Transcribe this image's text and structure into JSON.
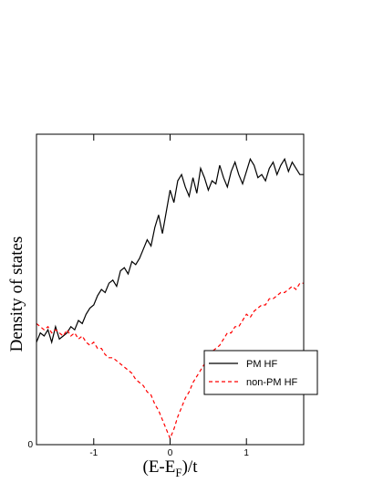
{
  "chart_data": {
    "type": "line",
    "xlabel": "(E-E",
    "xlabel_sub": "F",
    "xlabel_tail": ")/t",
    "ylabel": "Density of states",
    "xlim": [
      -1.75,
      1.75
    ],
    "ylim": [
      0,
      1.0
    ],
    "x_ticks": [
      -1,
      0,
      1
    ],
    "x_tick_labels": [
      "-1",
      "0",
      "1"
    ],
    "y_ticks": [
      0
    ],
    "y_tick_labels": [
      "0"
    ],
    "grid": false,
    "legend_position": "lower-right",
    "series": [
      {
        "name": "PM HF",
        "color": "#000000",
        "dash": "solid",
        "x": [
          -1.75,
          -1.7,
          -1.65,
          -1.6,
          -1.55,
          -1.5,
          -1.45,
          -1.4,
          -1.35,
          -1.3,
          -1.25,
          -1.2,
          -1.15,
          -1.1,
          -1.05,
          -1.0,
          -0.95,
          -0.9,
          -0.85,
          -0.8,
          -0.75,
          -0.7,
          -0.65,
          -0.6,
          -0.55,
          -0.5,
          -0.45,
          -0.4,
          -0.35,
          -0.3,
          -0.25,
          -0.2,
          -0.15,
          -0.1,
          -0.05,
          0.0,
          0.05,
          0.1,
          0.15,
          0.2,
          0.25,
          0.3,
          0.35,
          0.4,
          0.45,
          0.5,
          0.55,
          0.6,
          0.65,
          0.7,
          0.75,
          0.8,
          0.85,
          0.9,
          0.95,
          1.0,
          1.05,
          1.1,
          1.15,
          1.2,
          1.25,
          1.3,
          1.35,
          1.4,
          1.45,
          1.5,
          1.55,
          1.6,
          1.65,
          1.7,
          1.75
        ],
        "y": [
          0.33,
          0.36,
          0.35,
          0.37,
          0.33,
          0.38,
          0.34,
          0.35,
          0.36,
          0.38,
          0.37,
          0.4,
          0.39,
          0.42,
          0.44,
          0.45,
          0.48,
          0.5,
          0.49,
          0.52,
          0.53,
          0.51,
          0.56,
          0.57,
          0.55,
          0.59,
          0.58,
          0.6,
          0.63,
          0.66,
          0.64,
          0.7,
          0.74,
          0.68,
          0.75,
          0.82,
          0.78,
          0.85,
          0.87,
          0.83,
          0.8,
          0.86,
          0.81,
          0.89,
          0.86,
          0.82,
          0.85,
          0.84,
          0.9,
          0.86,
          0.83,
          0.88,
          0.91,
          0.87,
          0.84,
          0.88,
          0.92,
          0.9,
          0.86,
          0.87,
          0.85,
          0.89,
          0.91,
          0.87,
          0.9,
          0.92,
          0.88,
          0.91,
          0.89,
          0.87,
          0.87
        ]
      },
      {
        "name": "non-PM HF",
        "color": "#ff0000",
        "dash": "dashed",
        "x": [
          -1.75,
          -1.7,
          -1.65,
          -1.6,
          -1.55,
          -1.5,
          -1.45,
          -1.4,
          -1.35,
          -1.3,
          -1.25,
          -1.2,
          -1.15,
          -1.1,
          -1.05,
          -1.0,
          -0.95,
          -0.9,
          -0.85,
          -0.8,
          -0.75,
          -0.7,
          -0.65,
          -0.6,
          -0.55,
          -0.5,
          -0.45,
          -0.4,
          -0.35,
          -0.3,
          -0.25,
          -0.2,
          -0.15,
          -0.1,
          -0.05,
          0.0,
          0.05,
          0.1,
          0.15,
          0.2,
          0.25,
          0.3,
          0.35,
          0.4,
          0.45,
          0.5,
          0.55,
          0.6,
          0.65,
          0.7,
          0.75,
          0.8,
          0.85,
          0.9,
          0.95,
          1.0,
          1.05,
          1.1,
          1.15,
          1.2,
          1.25,
          1.3,
          1.35,
          1.4,
          1.45,
          1.5,
          1.55,
          1.6,
          1.65,
          1.7,
          1.75
        ],
        "y": [
          0.39,
          0.38,
          0.37,
          0.38,
          0.36,
          0.37,
          0.36,
          0.35,
          0.37,
          0.35,
          0.36,
          0.34,
          0.35,
          0.33,
          0.32,
          0.33,
          0.31,
          0.31,
          0.29,
          0.28,
          0.28,
          0.27,
          0.26,
          0.25,
          0.24,
          0.23,
          0.21,
          0.2,
          0.19,
          0.17,
          0.16,
          0.13,
          0.11,
          0.08,
          0.05,
          0.02,
          0.05,
          0.09,
          0.12,
          0.15,
          0.17,
          0.2,
          0.22,
          0.24,
          0.26,
          0.27,
          0.3,
          0.31,
          0.32,
          0.34,
          0.36,
          0.36,
          0.38,
          0.38,
          0.4,
          0.42,
          0.41,
          0.43,
          0.44,
          0.45,
          0.45,
          0.47,
          0.47,
          0.48,
          0.49,
          0.49,
          0.5,
          0.51,
          0.5,
          0.52,
          0.52
        ]
      }
    ]
  }
}
